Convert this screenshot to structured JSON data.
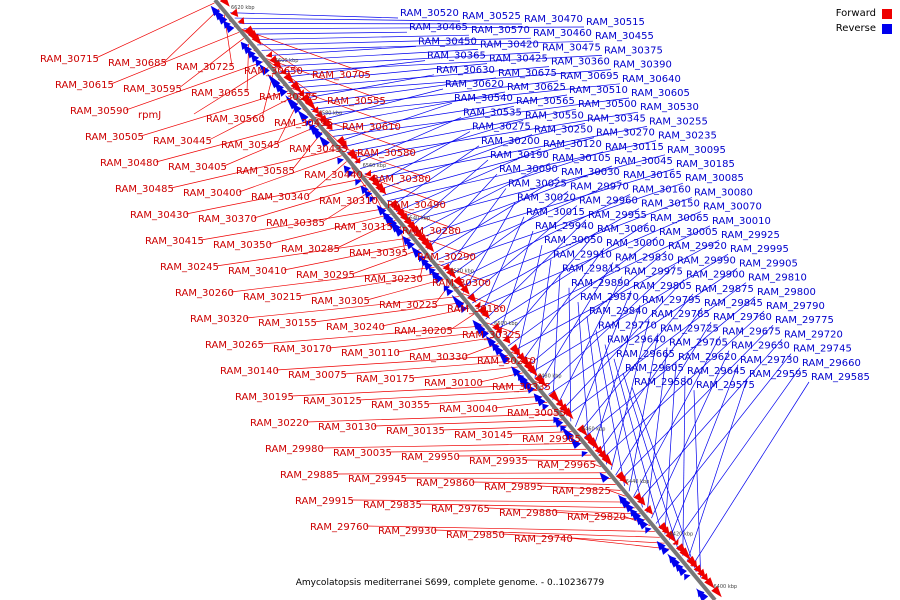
{
  "caption": "Amycolatopsis mediterranei S699, complete genome. - 0..10236779",
  "legend": {
    "forward": {
      "label": "Forward",
      "color": "#ee0000"
    },
    "reverse": {
      "label": "Reverse",
      "color": "#0000ee"
    }
  },
  "axis": {
    "ticks": [
      "6620 kbp",
      "6600 kbp",
      "6580 kbp",
      "6560 kbp",
      "6540 kbp",
      "6520 kbp",
      "6500 kbp",
      "6480 kbp",
      "6460 kbp",
      "6440 kbp",
      "6420 kbp",
      "6400 kbp"
    ]
  },
  "labels": {
    "forward": [
      "RAM_30715",
      "RAM_30685",
      "RAM_30725",
      "RAM_30650",
      "RAM_30705",
      "RAM_30615",
      "RAM_30595",
      "RAM_30655",
      "RAM_30575",
      "RAM_30555",
      "RAM_30590",
      "rpmJ",
      "RAM_30560",
      "RAM_30495",
      "RAM_30610",
      "RAM_30505",
      "RAM_30445",
      "RAM_30545",
      "RAM_30435",
      "RAM_30580",
      "RAM_30480",
      "RAM_30405",
      "RAM_30585",
      "RAM_30440",
      "RAM_30380",
      "RAM_30485",
      "RAM_30400",
      "RAM_30340",
      "RAM_30310",
      "RAM_30490",
      "RAM_30430",
      "RAM_30370",
      "RAM_30385",
      "RAM_30315",
      "RAM_30280",
      "RAM_30415",
      "RAM_30350",
      "RAM_30285",
      "RAM_30395",
      "RAM_30290",
      "RAM_30245",
      "RAM_30410",
      "RAM_30295",
      "RAM_30230",
      "RAM_30300",
      "RAM_30260",
      "RAM_30215",
      "RAM_30305",
      "RAM_30225",
      "RAM_30180",
      "RAM_30320",
      "RAM_30155",
      "RAM_30240",
      "RAM_30205",
      "RAM_30325",
      "RAM_30265",
      "RAM_30170",
      "RAM_30110",
      "RAM_30330",
      "RAM_30210",
      "RAM_30140",
      "RAM_30075",
      "RAM_30175",
      "RAM_30100",
      "RAM_30335",
      "RAM_30195",
      "RAM_30125",
      "RAM_30355",
      "RAM_30040",
      "RAM_30055",
      "RAM_30220",
      "RAM_30130",
      "RAM_30135",
      "RAM_30145",
      "RAM_29985",
      "RAM_29980",
      "RAM_30035",
      "RAM_29950",
      "RAM_29935",
      "RAM_29965",
      "RAM_29885",
      "RAM_29945",
      "RAM_29860",
      "RAM_29895",
      "RAM_29825",
      "RAM_29915",
      "RAM_29835",
      "RAM_29765",
      "RAM_29880",
      "RAM_29820",
      "RAM_29760",
      "RAM_29930",
      "RAM_29850",
      "RAM_29740"
    ],
    "reverse": [
      "RAM_30520",
      "RAM_30525",
      "RAM_30470",
      "RAM_30515",
      "RAM_30465",
      "RAM_30570",
      "RAM_30460",
      "RAM_30455",
      "RAM_30450",
      "RAM_30420",
      "RAM_30475",
      "RAM_30375",
      "RAM_30365",
      "RAM_30425",
      "RAM_30360",
      "RAM_30390",
      "RAM_30630",
      "RAM_30675",
      "RAM_30695",
      "RAM_30640",
      "RAM_30620",
      "RAM_30625",
      "RAM_30510",
      "RAM_30605",
      "RAM_30540",
      "RAM_30565",
      "RAM_30500",
      "RAM_30530",
      "RAM_30535",
      "RAM_30550",
      "RAM_30345",
      "RAM_30255",
      "RAM_30275",
      "RAM_30250",
      "RAM_30270",
      "RAM_30235",
      "RAM_30200",
      "RAM_30120",
      "RAM_30115",
      "RAM_30095",
      "RAM_30190",
      "RAM_30105",
      "RAM_30045",
      "RAM_30185",
      "RAM_30090",
      "RAM_30030",
      "RAM_30165",
      "RAM_30085",
      "RAM_30025",
      "RAM_29970",
      "RAM_30160",
      "RAM_30080",
      "RAM_30020",
      "RAM_29960",
      "RAM_30150",
      "RAM_30070",
      "RAM_30015",
      "RAM_29955",
      "RAM_30065",
      "RAM_30010",
      "RAM_29940",
      "RAM_30060",
      "RAM_30005",
      "RAM_29925",
      "RAM_30050",
      "RAM_30000",
      "RAM_29920",
      "RAM_29995",
      "RAM_29910",
      "RAM_29830",
      "RAM_29990",
      "RAM_29905",
      "RAM_29815",
      "RAM_29975",
      "RAM_29900",
      "RAM_29810",
      "RAM_29890",
      "RAM_29805",
      "RAM_29875",
      "RAM_29800",
      "RAM_29870",
      "RAM_29795",
      "RAM_29845",
      "RAM_29790",
      "RAM_29840",
      "RAM_29785",
      "RAM_29780",
      "RAM_29775",
      "RAM_29770",
      "RAM_29725",
      "RAM_29675",
      "RAM_29720",
      "RAM_29640",
      "RAM_29705",
      "RAM_29630",
      "RAM_29745",
      "RAM_29665",
      "RAM_29620",
      "RAM_29730",
      "RAM_29660",
      "RAM_29605",
      "RAM_29645",
      "RAM_29595",
      "RAM_29585",
      "RAM_29580",
      "RAM_29575"
    ]
  }
}
